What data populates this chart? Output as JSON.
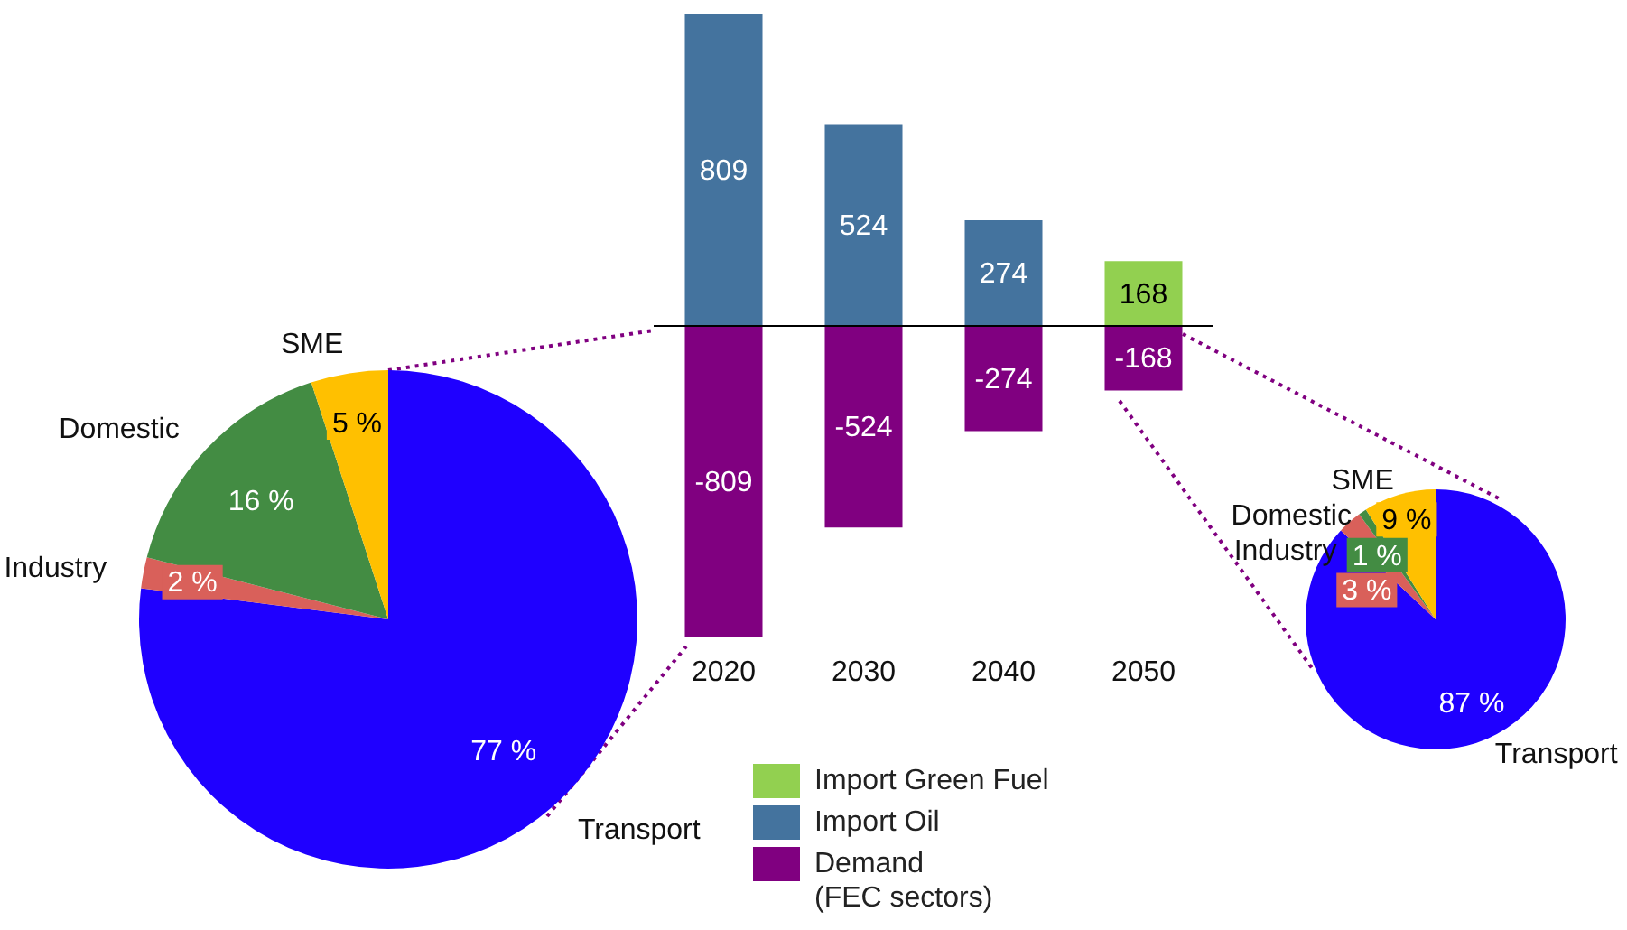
{
  "chart_data": [
    {
      "type": "pie",
      "categories": [
        "Transport",
        "Industry",
        "Domestic",
        "SME"
      ],
      "values": [
        77,
        2,
        16,
        5
      ],
      "colors": [
        "#1f00ff",
        "#d9605a",
        "#438c43",
        "#ffc000"
      ],
      "value_labels": [
        "77 %",
        "2 %",
        "16 %",
        "5 %"
      ]
    },
    {
      "type": "bar",
      "categories": [
        "2020",
        "2030",
        "2040",
        "2050"
      ],
      "stacked": true,
      "data_labels": true,
      "grid": false,
      "tick_labels": "x",
      "legend": "bottom",
      "series": [
        {
          "name": "Import  Green Fuel",
          "color": "#92d050",
          "values": [
            null,
            null,
            null,
            168
          ]
        },
        {
          "name": "Import Oil",
          "color": "#44739e",
          "values": [
            809,
            524,
            274,
            null
          ]
        },
        {
          "name": "Demand\n(FEC sectors)",
          "color": "#800080",
          "values": [
            -809,
            -524,
            -274,
            -168
          ]
        }
      ]
    },
    {
      "type": "pie",
      "categories": [
        "Transport",
        "Industry",
        "Domestic",
        "SME"
      ],
      "values": [
        87,
        3,
        1,
        9
      ],
      "colors": [
        "#1f00ff",
        "#d9605a",
        "#438c43",
        "#ffc000"
      ],
      "value_labels": [
        "87 %",
        "3 %",
        "1 %",
        "9 %"
      ]
    }
  ]
}
